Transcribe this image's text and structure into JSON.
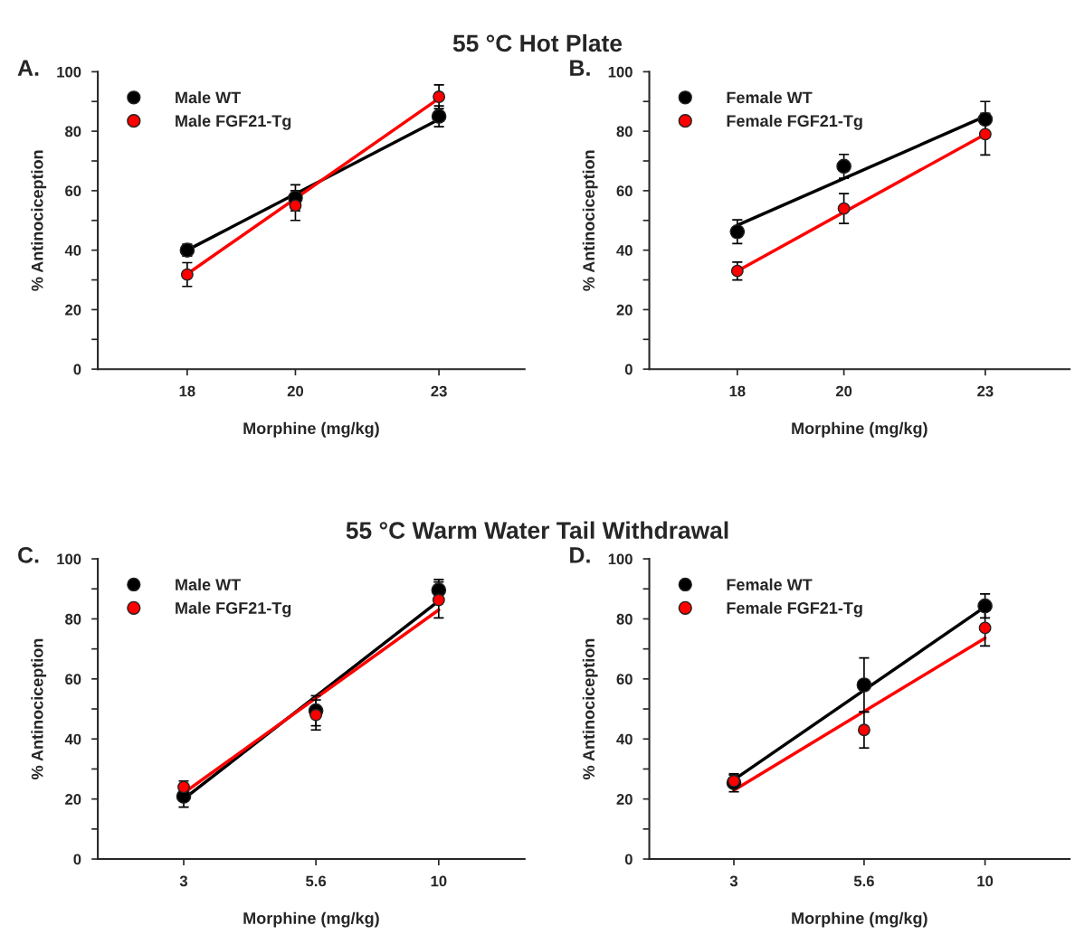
{
  "chart_data": [
    {
      "type": "line",
      "title": "55 °C Hot Plate",
      "annotations": [
        "A."
      ],
      "xlabel": "Morphine (mg/kg)",
      "ylabel": "% Antinociception",
      "log": "x",
      "xlim": [
        16.5,
        25
      ],
      "xticks": [
        18,
        20,
        23
      ],
      "ylim": [
        0,
        100
      ],
      "yticks": [
        0,
        {
          "value": 10,
          "label": null
        },
        20,
        {
          "value": 30,
          "label": null
        },
        40,
        {
          "value": 50,
          "label": null
        },
        60,
        {
          "value": 70,
          "label": null
        },
        80,
        {
          "value": 90,
          "label": null
        },
        100
      ],
      "legend": "top left",
      "grid": false,
      "series": [
        {
          "color": "#000000",
          "x": [
            18,
            23
          ],
          "values": [
            40,
            84
          ]
        },
        {
          "color": "#ff0000",
          "x": [
            18,
            23
          ],
          "values": [
            32,
            91
          ]
        },
        {
          "type": "scatter",
          "marker": "circle",
          "name": "Male WT",
          "color": "#000000",
          "x": [
            18,
            20,
            23
          ],
          "values": [
            40,
            57.6,
            85
          ],
          "errors": [
            2,
            4.4,
            3.5
          ]
        },
        {
          "type": "scatter",
          "marker": "circle",
          "name": "Male FGF21-Tg",
          "color": "#ff0000",
          "x": [
            18,
            20,
            23
          ],
          "values": [
            31.8,
            55,
            91.6
          ],
          "errors": [
            4,
            5,
            4
          ]
        }
      ]
    },
    {
      "type": "line",
      "annotations": [
        "B."
      ],
      "xlabel": "Morphine (mg/kg)",
      "ylabel": "% Antinociception",
      "log": "x",
      "xlim": [
        16.5,
        25
      ],
      "xticks": [
        18,
        20,
        23
      ],
      "ylim": [
        0,
        100
      ],
      "yticks": [
        0,
        {
          "value": 10,
          "label": null
        },
        20,
        {
          "value": 30,
          "label": null
        },
        40,
        {
          "value": 50,
          "label": null
        },
        60,
        {
          "value": 70,
          "label": null
        },
        80,
        {
          "value": 90,
          "label": null
        },
        100
      ],
      "legend": "top left",
      "grid": false,
      "series": [
        {
          "color": "#000000",
          "x": [
            18,
            23
          ],
          "values": [
            48.4,
            85
          ]
        },
        {
          "color": "#ff0000",
          "x": [
            18,
            23
          ],
          "values": [
            33,
            79
          ]
        },
        {
          "type": "scatter",
          "marker": "circle",
          "name": "Female WT",
          "color": "#000000",
          "x": [
            18,
            20,
            23
          ],
          "values": [
            46.2,
            68.2,
            84
          ],
          "errors": [
            4,
            4,
            6
          ]
        },
        {
          "type": "scatter",
          "marker": "circle",
          "name": "Female FGF21-Tg",
          "color": "#ff0000",
          "x": [
            18,
            20,
            23
          ],
          "values": [
            33,
            54,
            79
          ],
          "errors": [
            3,
            5,
            7
          ]
        }
      ]
    },
    {
      "type": "line",
      "title": "55 °C Warm Water Tail Withdrawal",
      "annotations": [
        "C."
      ],
      "xlabel": "Morphine (mg/kg)",
      "ylabel": "% Antinociception",
      "log": "x",
      "xlim": [
        2,
        15
      ],
      "xticks": [
        3,
        5.6,
        10
      ],
      "ylim": [
        0,
        100
      ],
      "yticks": [
        0,
        {
          "value": 10,
          "label": null
        },
        20,
        {
          "value": 30,
          "label": null
        },
        40,
        {
          "value": 50,
          "label": null
        },
        60,
        {
          "value": 70,
          "label": null
        },
        80,
        {
          "value": 90,
          "label": null
        },
        100
      ],
      "legend": "top left",
      "grid": false,
      "series": [
        {
          "color": "#000000",
          "x": [
            3,
            10
          ],
          "values": [
            20,
            86
          ]
        },
        {
          "color": "#ff0000",
          "x": [
            3,
            10
          ],
          "values": [
            22,
            83
          ]
        },
        {
          "type": "scatter",
          "marker": "circle",
          "name": "Male WT",
          "color": "#000000",
          "x": [
            3,
            5.6,
            10
          ],
          "values": [
            20.9,
            49.4,
            89.6
          ],
          "errors": [
            3.6,
            5,
            3.5
          ]
        },
        {
          "type": "scatter",
          "marker": "circle",
          "name": "Male FGF21-Tg",
          "color": "#ff0000",
          "x": [
            3,
            5.6,
            10
          ],
          "values": [
            24,
            48,
            86.3
          ],
          "errors": [
            2,
            5,
            6
          ]
        }
      ]
    },
    {
      "type": "line",
      "annotations": [
        "D."
      ],
      "xlabel": "Morphine (mg/kg)",
      "ylabel": "% Antinociception",
      "log": "x",
      "xlim": [
        2,
        15
      ],
      "xticks": [
        3,
        5.6,
        10
      ],
      "ylim": [
        0,
        100
      ],
      "yticks": [
        0,
        {
          "value": 10,
          "label": null
        },
        20,
        {
          "value": 30,
          "label": null
        },
        40,
        {
          "value": 50,
          "label": null
        },
        60,
        {
          "value": 70,
          "label": null
        },
        80,
        {
          "value": 90,
          "label": null
        },
        100
      ],
      "legend": "top left",
      "grid": false,
      "series": [
        {
          "color": "#000000",
          "x": [
            3,
            10
          ],
          "values": [
            26.4,
            84
          ]
        },
        {
          "color": "#ff0000",
          "x": [
            3,
            10
          ],
          "values": [
            22.9,
            73.6
          ]
        },
        {
          "type": "scatter",
          "marker": "circle",
          "name": "Female WT",
          "color": "#000000",
          "x": [
            3,
            5.6,
            10
          ],
          "values": [
            25.4,
            58,
            84.3
          ],
          "errors": [
            3,
            9,
            4
          ]
        },
        {
          "type": "scatter",
          "marker": "circle",
          "name": "Female FGF21-Tg",
          "color": "#ff0000",
          "x": [
            3,
            5.6,
            10
          ],
          "values": [
            26,
            43,
            77
          ],
          "errors": [
            2,
            6,
            6
          ]
        }
      ]
    }
  ]
}
